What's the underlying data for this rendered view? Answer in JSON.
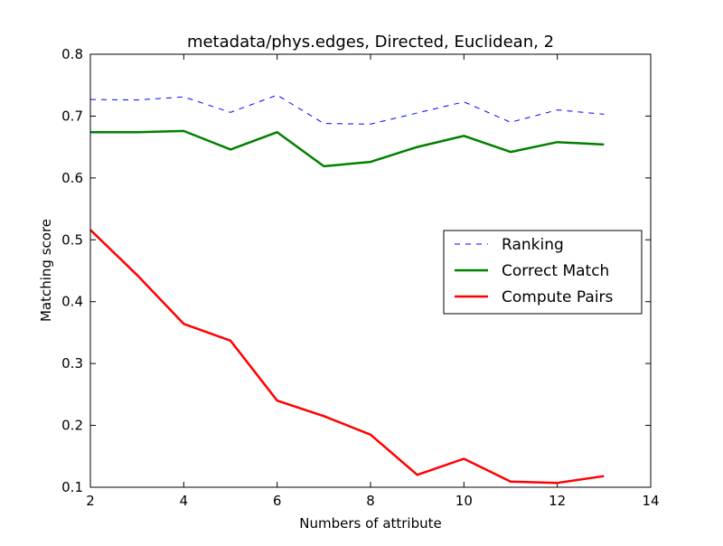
{
  "chart_data": {
    "type": "line",
    "title": "metadata/phys.edges, Directed, Euclidean, 2",
    "xlabel": "Numbers of attribute",
    "ylabel": "Matching score",
    "xlim": [
      2,
      14
    ],
    "ylim": [
      0.1,
      0.8
    ],
    "xticks": [
      2,
      4,
      6,
      8,
      10,
      12,
      14
    ],
    "yticks": [
      0.1,
      0.2,
      0.3,
      0.4,
      0.5,
      0.6,
      0.7,
      0.8
    ],
    "grid": false,
    "legend_position": "center-right",
    "x": [
      2,
      3,
      4,
      5,
      6,
      7,
      8,
      9,
      10,
      11,
      12,
      13
    ],
    "series": [
      {
        "name": "Ranking",
        "style": "dashed",
        "color": "#0000ff",
        "values": [
          0.727,
          0.726,
          0.731,
          0.706,
          0.734,
          0.688,
          0.687,
          0.705,
          0.723,
          0.69,
          0.71,
          0.703
        ]
      },
      {
        "name": "Correct Match",
        "style": "solid",
        "color": "#008000",
        "values": [
          0.674,
          0.674,
          0.676,
          0.646,
          0.674,
          0.619,
          0.626,
          0.65,
          0.668,
          0.642,
          0.658,
          0.654
        ]
      },
      {
        "name": "Compute Pairs",
        "style": "solid",
        "color": "#ff0000",
        "values": [
          0.516,
          0.443,
          0.364,
          0.337,
          0.24,
          0.215,
          0.185,
          0.12,
          0.146,
          0.109,
          0.107,
          0.118
        ]
      }
    ]
  }
}
